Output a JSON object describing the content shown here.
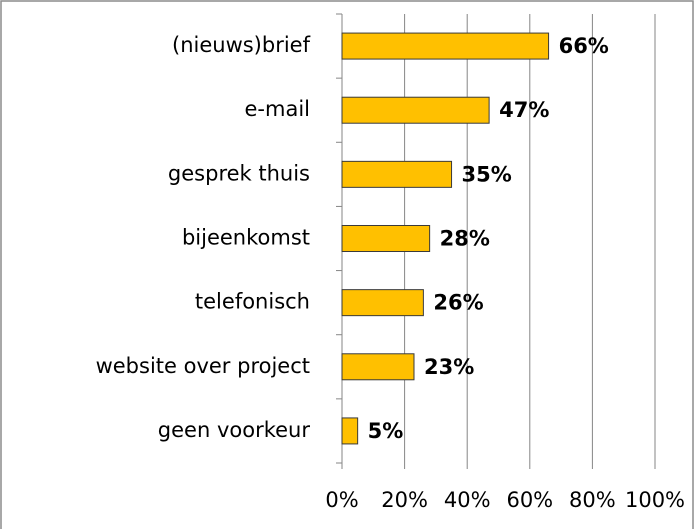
{
  "chart_data": {
    "type": "bar",
    "orientation": "horizontal",
    "categories": [
      "(nieuws)brief",
      "e-mail",
      "gesprek thuis",
      "bijeenkomst",
      "telefonisch",
      "website over project",
      "geen voorkeur"
    ],
    "values": [
      66,
      47,
      35,
      28,
      26,
      23,
      5
    ],
    "value_labels": [
      "66%",
      "47%",
      "35%",
      "28%",
      "26%",
      "23%",
      "5%"
    ],
    "color": "#ffc000",
    "xlim": [
      0,
      100
    ],
    "xticks": [
      {
        "value": 0,
        "label": "0%"
      },
      {
        "value": 20,
        "label": "20%"
      },
      {
        "value": 40,
        "label": "40%"
      },
      {
        "value": 60,
        "label": "60%"
      },
      {
        "value": 80,
        "label": "80%"
      },
      {
        "value": 100,
        "label": "100%"
      }
    ],
    "grid": true
  }
}
